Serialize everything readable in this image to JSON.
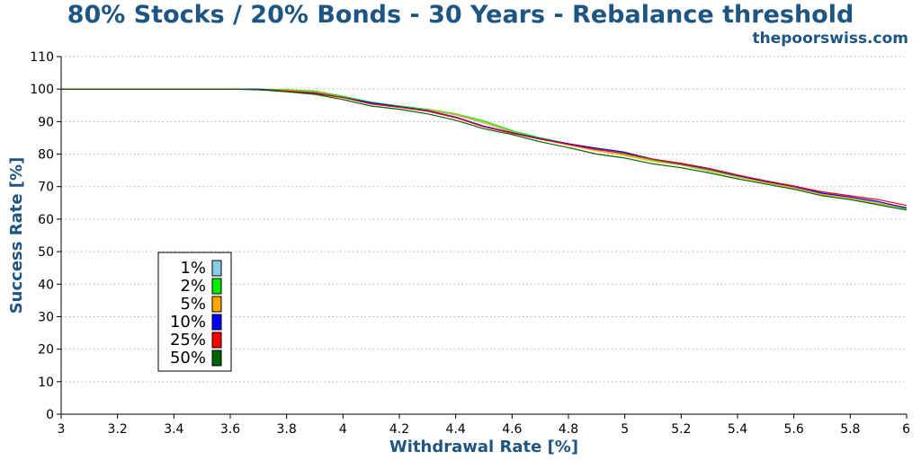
{
  "chart_data": {
    "type": "line",
    "title": "80% Stocks / 20% Bonds - 30 Years - Rebalance threshold",
    "subtitle": "thepoorswiss.com",
    "xlabel": "Withdrawal Rate [%]",
    "ylabel": "Success Rate [%]",
    "xlim": [
      3,
      6
    ],
    "ylim": [
      0,
      110
    ],
    "x_ticks": [
      "3",
      "3.2",
      "3.4",
      "3.6",
      "3.8",
      "4",
      "4.2",
      "4.4",
      "4.6",
      "4.8",
      "5",
      "5.2",
      "5.4",
      "5.6",
      "5.8",
      "6"
    ],
    "y_ticks": [
      "0",
      "10",
      "20",
      "30",
      "40",
      "50",
      "60",
      "70",
      "80",
      "90",
      "100",
      "110"
    ],
    "grid": "horizontal-dotted",
    "legend_position": "lower-left",
    "x": [
      3.0,
      3.6,
      3.7,
      3.8,
      3.9,
      4.0,
      4.1,
      4.2,
      4.3,
      4.4,
      4.5,
      4.6,
      4.7,
      4.8,
      4.9,
      5.0,
      5.1,
      5.2,
      5.3,
      5.4,
      5.5,
      5.6,
      5.7,
      5.8,
      5.9,
      6.0
    ],
    "series": [
      {
        "name": "1%",
        "color": "#87ceeb",
        "values": [
          100,
          100,
          100,
          99.6,
          99,
          97.6,
          95.8,
          94.6,
          93.6,
          92.0,
          89.6,
          86.8,
          84.8,
          83.0,
          81.6,
          80.4,
          78.6,
          77.2,
          75.4,
          73.4,
          71.8,
          70.0,
          68.0,
          66.8,
          65.0,
          63.6
        ]
      },
      {
        "name": "2%",
        "color": "#00ee00",
        "values": [
          100,
          100,
          100,
          99.8,
          99.4,
          97.8,
          96.0,
          94.8,
          93.8,
          92.4,
          90.2,
          87.2,
          85.0,
          83.2,
          81.6,
          80.0,
          78.2,
          76.8,
          75.0,
          73.2,
          71.4,
          69.6,
          67.6,
          66.4,
          64.8,
          63.2
        ]
      },
      {
        "name": "5%",
        "color": "#ffa500",
        "values": [
          100,
          100,
          100,
          99.6,
          99.2,
          97.4,
          95.6,
          94.4,
          93.6,
          92.2,
          89.8,
          86.8,
          84.6,
          82.8,
          81.0,
          79.6,
          77.8,
          76.6,
          74.8,
          73.0,
          71.2,
          69.6,
          67.6,
          66.4,
          64.8,
          63.4
        ]
      },
      {
        "name": "10%",
        "color": "#0000ff",
        "values": [
          100,
          100,
          100,
          99.4,
          98.8,
          97.4,
          95.8,
          94.6,
          93.4,
          91.4,
          88.6,
          86.6,
          84.8,
          83.2,
          81.8,
          80.6,
          78.4,
          77.0,
          75.4,
          73.4,
          71.6,
          70.0,
          68.0,
          66.8,
          65.4,
          63.4
        ]
      },
      {
        "name": "25%",
        "color": "#ff0000",
        "values": [
          100,
          100,
          99.8,
          99.4,
          98.6,
          97.4,
          95.4,
          94.4,
          93.2,
          91.2,
          88.4,
          86.4,
          84.6,
          83.0,
          81.4,
          80.2,
          78.4,
          77.2,
          75.6,
          73.6,
          71.8,
          70.2,
          68.4,
          67.2,
          66.0,
          64.2
        ]
      },
      {
        "name": "50%",
        "color": "#006400",
        "values": [
          100,
          100,
          99.8,
          99.2,
          98.4,
          96.8,
          94.8,
          93.8,
          92.4,
          90.4,
          87.8,
          86.0,
          83.8,
          82.0,
          80.0,
          78.8,
          77.0,
          75.8,
          74.2,
          72.4,
          70.8,
          69.2,
          67.2,
          66.0,
          64.4,
          62.8
        ]
      }
    ]
  }
}
